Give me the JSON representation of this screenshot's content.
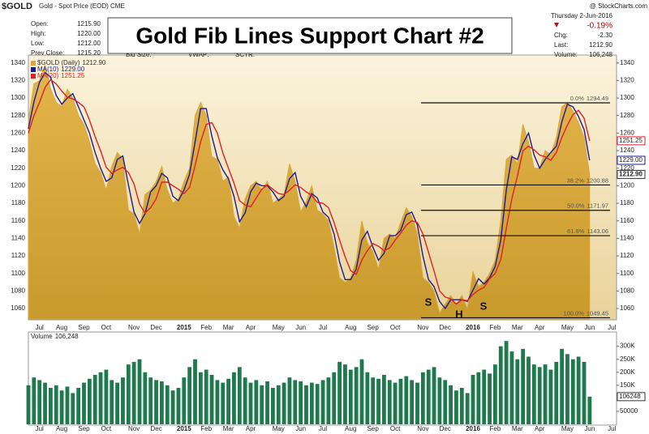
{
  "header": {
    "symbol": "$GOLD",
    "description": "Gold - Spot Price (EOD) CME",
    "source": "@ StockCharts.com",
    "stats": [
      [
        "Open:",
        "1215.90"
      ],
      [
        "High:",
        "1220.00"
      ],
      [
        "Low:",
        "1212.00"
      ],
      [
        "Prev Close:",
        "1215.20"
      ]
    ],
    "fields": [
      "Bid Size:",
      "VWAP:",
      "SCTR:"
    ],
    "date": "Thursday  2-Jun-2016",
    "change_pct": "-0.19%",
    "right_stats": [
      [
        "Chg:",
        "-2.30"
      ],
      [
        "Last:",
        "1212.90"
      ],
      [
        "Volume:",
        "106,248"
      ]
    ]
  },
  "chart_data": {
    "type": "area",
    "title": "Gold Fib Lines Support Chart #2",
    "categories": [
      null,
      null,
      "Jul",
      null,
      null,
      null,
      "Aug",
      null,
      null,
      null,
      "Sep",
      null,
      null,
      null,
      "Oct",
      null,
      null,
      null,
      null,
      "Nov",
      null,
      null,
      null,
      "Dec",
      null,
      null,
      null,
      null,
      "2015",
      null,
      null,
      null,
      "Feb",
      null,
      null,
      null,
      "Mar",
      null,
      null,
      null,
      "Apr",
      null,
      null,
      null,
      null,
      "May",
      null,
      null,
      null,
      "Jun",
      null,
      null,
      null,
      "Jul",
      null,
      null,
      null,
      null,
      "Aug",
      null,
      null,
      null,
      "Sep",
      null,
      null,
      null,
      "Oct",
      null,
      null,
      null,
      null,
      "Nov",
      null,
      null,
      null,
      "Dec",
      null,
      null,
      null,
      null,
      "2016",
      null,
      null,
      null,
      "Feb",
      null,
      null,
      null,
      "Mar",
      null,
      null,
      null,
      "Apr",
      null,
      null,
      null,
      null,
      "May",
      null,
      null,
      null,
      "Jun",
      null,
      null,
      null,
      "Jul"
    ],
    "series": [
      {
        "name": "$GOLD (Daily)",
        "color": "#d9a838",
        "last_label": "1212.90",
        "values": [
          1275,
          1316,
          1320,
          1337,
          1310,
          1295,
          1290,
          1310,
          1300,
          1280,
          1270,
          1250,
          1225,
          1215,
          1195,
          1222,
          1238,
          1230,
          1172,
          1168,
          1145,
          1190,
          1195,
          1205,
          1222,
          1195,
          1180,
          1185,
          1205,
          1220,
          1280,
          1295,
          1280,
          1233,
          1230,
          1205,
          1210,
          1165,
          1152,
          1185,
          1200,
          1205,
          1195,
          1205,
          1180,
          1185,
          1190,
          1225,
          1205,
          1170,
          1182,
          1200,
          1172,
          1168,
          1160,
          1130,
          1095,
          1090,
          1095,
          1115,
          1160,
          1135,
          1125,
          1105,
          1140,
          1145,
          1140,
          1158,
          1175,
          1165,
          1145,
          1095,
          1090,
          1080,
          1055,
          1065,
          1075,
          1065,
          1075,
          1060,
          1102,
          1085,
          1090,
          1100,
          1115,
          1160,
          1230,
          1235,
          1225,
          1270,
          1250,
          1220,
          1220,
          1240,
          1235,
          1255,
          1290,
          1295,
          1285,
          1272,
          1255,
          1212.9,
          null,
          null,
          null,
          null
        ]
      },
      {
        "name": "MA(10)",
        "color": "#1c1c8f",
        "last_label": "1229.00",
        "values": [
          1265,
          1296,
          1318,
          1329,
          1324,
          1303,
          1293,
          1300,
          1305,
          1290,
          1275,
          1260,
          1238,
          1220,
          1205,
          1209,
          1230,
          1234,
          1201,
          1170,
          1157,
          1168,
          1193,
          1200,
          1214,
          1209,
          1188,
          1183,
          1195,
          1213,
          1250,
          1288,
          1288,
          1257,
          1232,
          1218,
          1208,
          1188,
          1159,
          1169,
          1193,
          1203,
          1200,
          1200,
          1193,
          1183,
          1188,
          1208,
          1215,
          1188,
          1176,
          1191,
          1186,
          1170,
          1164,
          1145,
          1113,
          1093,
          1093,
          1105,
          1138,
          1148,
          1130,
          1115,
          1123,
          1143,
          1143,
          1149,
          1167,
          1170,
          1155,
          1120,
          1093,
          1085,
          1068,
          1060,
          1070,
          1070,
          1070,
          1068,
          1081,
          1094,
          1088,
          1095,
          1108,
          1138,
          1195,
          1233,
          1230,
          1248,
          1260,
          1235,
          1220,
          1230,
          1238,
          1245,
          1273,
          1293,
          1290,
          1279,
          1264,
          1229,
          null,
          null,
          null,
          null
        ]
      },
      {
        "name": "MA(20)",
        "color": "#e0202a",
        "last_label": "1251.25",
        "values": [
          1260,
          1280,
          1295,
          1312,
          1321,
          1316,
          1308,
          1301,
          1299,
          1295,
          1290,
          1275,
          1256,
          1240,
          1221,
          1214,
          1218,
          1221,
          1215,
          1202,
          1179,
          1169,
          1175,
          1185,
          1204,
          1204,
          1200,
          1196,
          1191,
          1198,
          1223,
          1250,
          1270,
          1272,
          1260,
          1237,
          1220,
          1203,
          1183,
          1178,
          1176,
          1186,
          1196,
          1201,
          1196,
          1191,
          1190,
          1195,
          1201,
          1198,
          1193,
          1189,
          1181,
          1180,
          1175,
          1158,
          1138,
          1119,
          1103,
          1099,
          1115,
          1126,
          1134,
          1131,
          1126,
          1129,
          1138,
          1146,
          1155,
          1160,
          1158,
          1145,
          1124,
          1103,
          1080,
          1073,
          1071,
          1065,
          1070,
          1069,
          1076,
          1081,
          1084,
          1094,
          1100,
          1116,
          1151,
          1185,
          1211,
          1240,
          1245,
          1241,
          1235,
          1233,
          1229,
          1238,
          1255,
          1269,
          1281,
          1286,
          1277,
          1251.25,
          null,
          null,
          null,
          null
        ]
      }
    ],
    "ylim": [
      1048,
      1349
    ],
    "yticks": [
      1060,
      1080,
      1100,
      1120,
      1140,
      1160,
      1180,
      1200,
      1220,
      1240,
      1260,
      1280,
      1300,
      1320,
      1340
    ],
    "fib_lines": [
      {
        "label": "0.0%",
        "value": 1294.49
      },
      {
        "label": "38.2%",
        "value": 1200.88
      },
      {
        "label": "50.0%",
        "value": 1171.97
      },
      {
        "label": "61.8%",
        "value": 1143.06
      },
      {
        "label": "100.0%",
        "value": 1049.45
      }
    ],
    "annotations": [
      "S",
      "H",
      "S"
    ],
    "volume": {
      "name": "Volume",
      "last_label": "106,248",
      "axis_label": "106248",
      "color": "#1e7a4c",
      "values": [
        150000,
        180000,
        170000,
        160000,
        140000,
        150000,
        130000,
        145000,
        120000,
        140000,
        160000,
        175000,
        190000,
        200000,
        210000,
        170000,
        160000,
        180000,
        230000,
        240000,
        250000,
        200000,
        180000,
        170000,
        165000,
        150000,
        130000,
        140000,
        180000,
        220000,
        250000,
        200000,
        210000,
        190000,
        170000,
        160000,
        175000,
        200000,
        220000,
        180000,
        160000,
        170000,
        150000,
        165000,
        140000,
        150000,
        160000,
        180000,
        170000,
        165000,
        150000,
        160000,
        155000,
        170000,
        180000,
        200000,
        240000,
        230000,
        210000,
        220000,
        250000,
        200000,
        180000,
        175000,
        190000,
        170000,
        160000,
        175000,
        185000,
        170000,
        160000,
        200000,
        210000,
        220000,
        180000,
        170000,
        150000,
        130000,
        140000,
        120000,
        190000,
        200000,
        210000,
        195000,
        230000,
        300000,
        320000,
        280000,
        250000,
        290000,
        260000,
        230000,
        220000,
        230000,
        210000,
        240000,
        290000,
        270000,
        250000,
        260000,
        240000,
        106248,
        null,
        null,
        null,
        null
      ],
      "ylim": [
        0,
        330000
      ],
      "yticks": [
        {
          "value": 50000,
          "label": "50000"
        },
        {
          "value": 150000,
          "label": "150K"
        },
        {
          "value": 200000,
          "label": "200K"
        },
        {
          "value": 250000,
          "label": "250K"
        },
        {
          "value": 300000,
          "label": "300K"
        }
      ]
    }
  }
}
